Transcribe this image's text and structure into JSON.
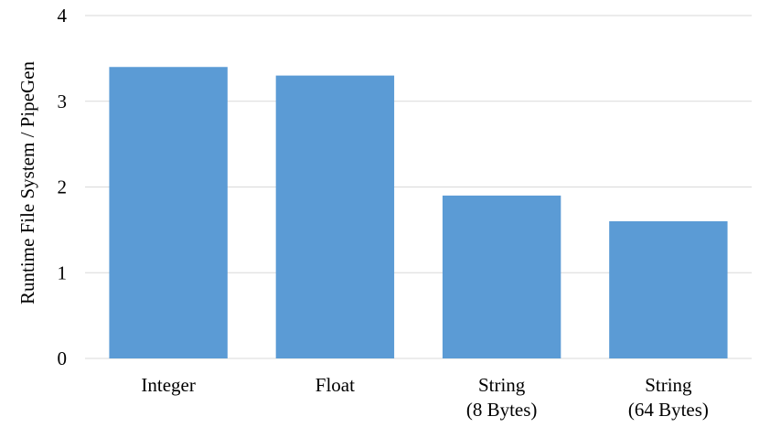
{
  "chart_data": {
    "type": "bar",
    "title": "",
    "xlabel": "",
    "ylabel": "Runtime File System / PipeGen",
    "categories": [
      [
        "Integer"
      ],
      [
        "Float"
      ],
      [
        "String",
        "(8 Bytes)"
      ],
      [
        "String",
        "(64 Bytes)"
      ]
    ],
    "values": [
      3.4,
      3.3,
      1.9,
      1.6
    ],
    "ylim": [
      0,
      4
    ],
    "yticks": [
      0,
      1,
      2,
      3,
      4
    ],
    "grid": true,
    "legend": "none",
    "bar_color": "#5b9bd5",
    "grid_color": "#d9d9d9"
  }
}
